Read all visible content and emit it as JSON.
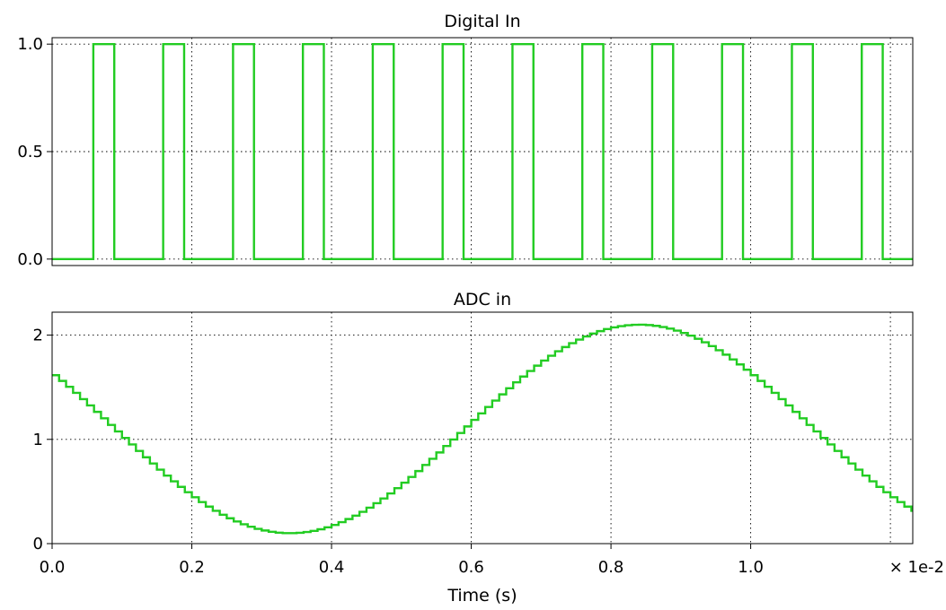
{
  "style": {
    "trace_color": "#22cc22",
    "grid": "dotted",
    "background": "#ffffff"
  },
  "chart_data": [
    {
      "type": "line",
      "subtype": "step",
      "title": "Digital In",
      "xlim": [
        0.0,
        0.01232
      ],
      "ylim": [
        -0.03,
        1.03
      ],
      "y_ticks": [
        0.0,
        0.5,
        1.0
      ],
      "y_tick_labels": [
        "0.0",
        "0.5",
        "1.0"
      ],
      "x_gridlines": [
        0.002,
        0.004,
        0.006,
        0.008,
        0.01,
        0.012
      ],
      "pulse_period": 0.001,
      "pulse_starts": [
        0.00059,
        0.00159,
        0.00259,
        0.00359,
        0.00459,
        0.00559,
        0.00659,
        0.00759,
        0.00859,
        0.00959,
        0.01059,
        0.01159
      ],
      "pulse_ends": [
        0.00089,
        0.00189,
        0.00289,
        0.00389,
        0.00489,
        0.00589,
        0.00689,
        0.00789,
        0.00889,
        0.00989,
        0.01089,
        0.01189
      ],
      "low": 0,
      "high": 1
    },
    {
      "type": "line",
      "subtype": "step",
      "title": "ADC in",
      "xlabel": "Time (s)",
      "x_scale_label": "× 1e-2",
      "xlim": [
        0.0,
        0.01232
      ],
      "ylim": [
        0,
        2.22
      ],
      "y_ticks": [
        0,
        1,
        2
      ],
      "y_tick_labels": [
        "0",
        "1",
        "2"
      ],
      "x_ticks": [
        0.0,
        0.002,
        0.004,
        0.006,
        0.008,
        0.01
      ],
      "x_tick_labels": [
        "0.0",
        "0.2",
        "0.4",
        "0.6",
        "0.8",
        "1.0"
      ],
      "x_gridlines": [
        0.002,
        0.004,
        0.006,
        0.008,
        0.01,
        0.012
      ],
      "sample_period": 0.0001,
      "signal": {
        "offset": 1.1,
        "amplitude": 1.0,
        "frequency_hz": 100,
        "phase_rad": 2.6,
        "x_start": 0.0,
        "x_end": 0.01232
      }
    }
  ]
}
